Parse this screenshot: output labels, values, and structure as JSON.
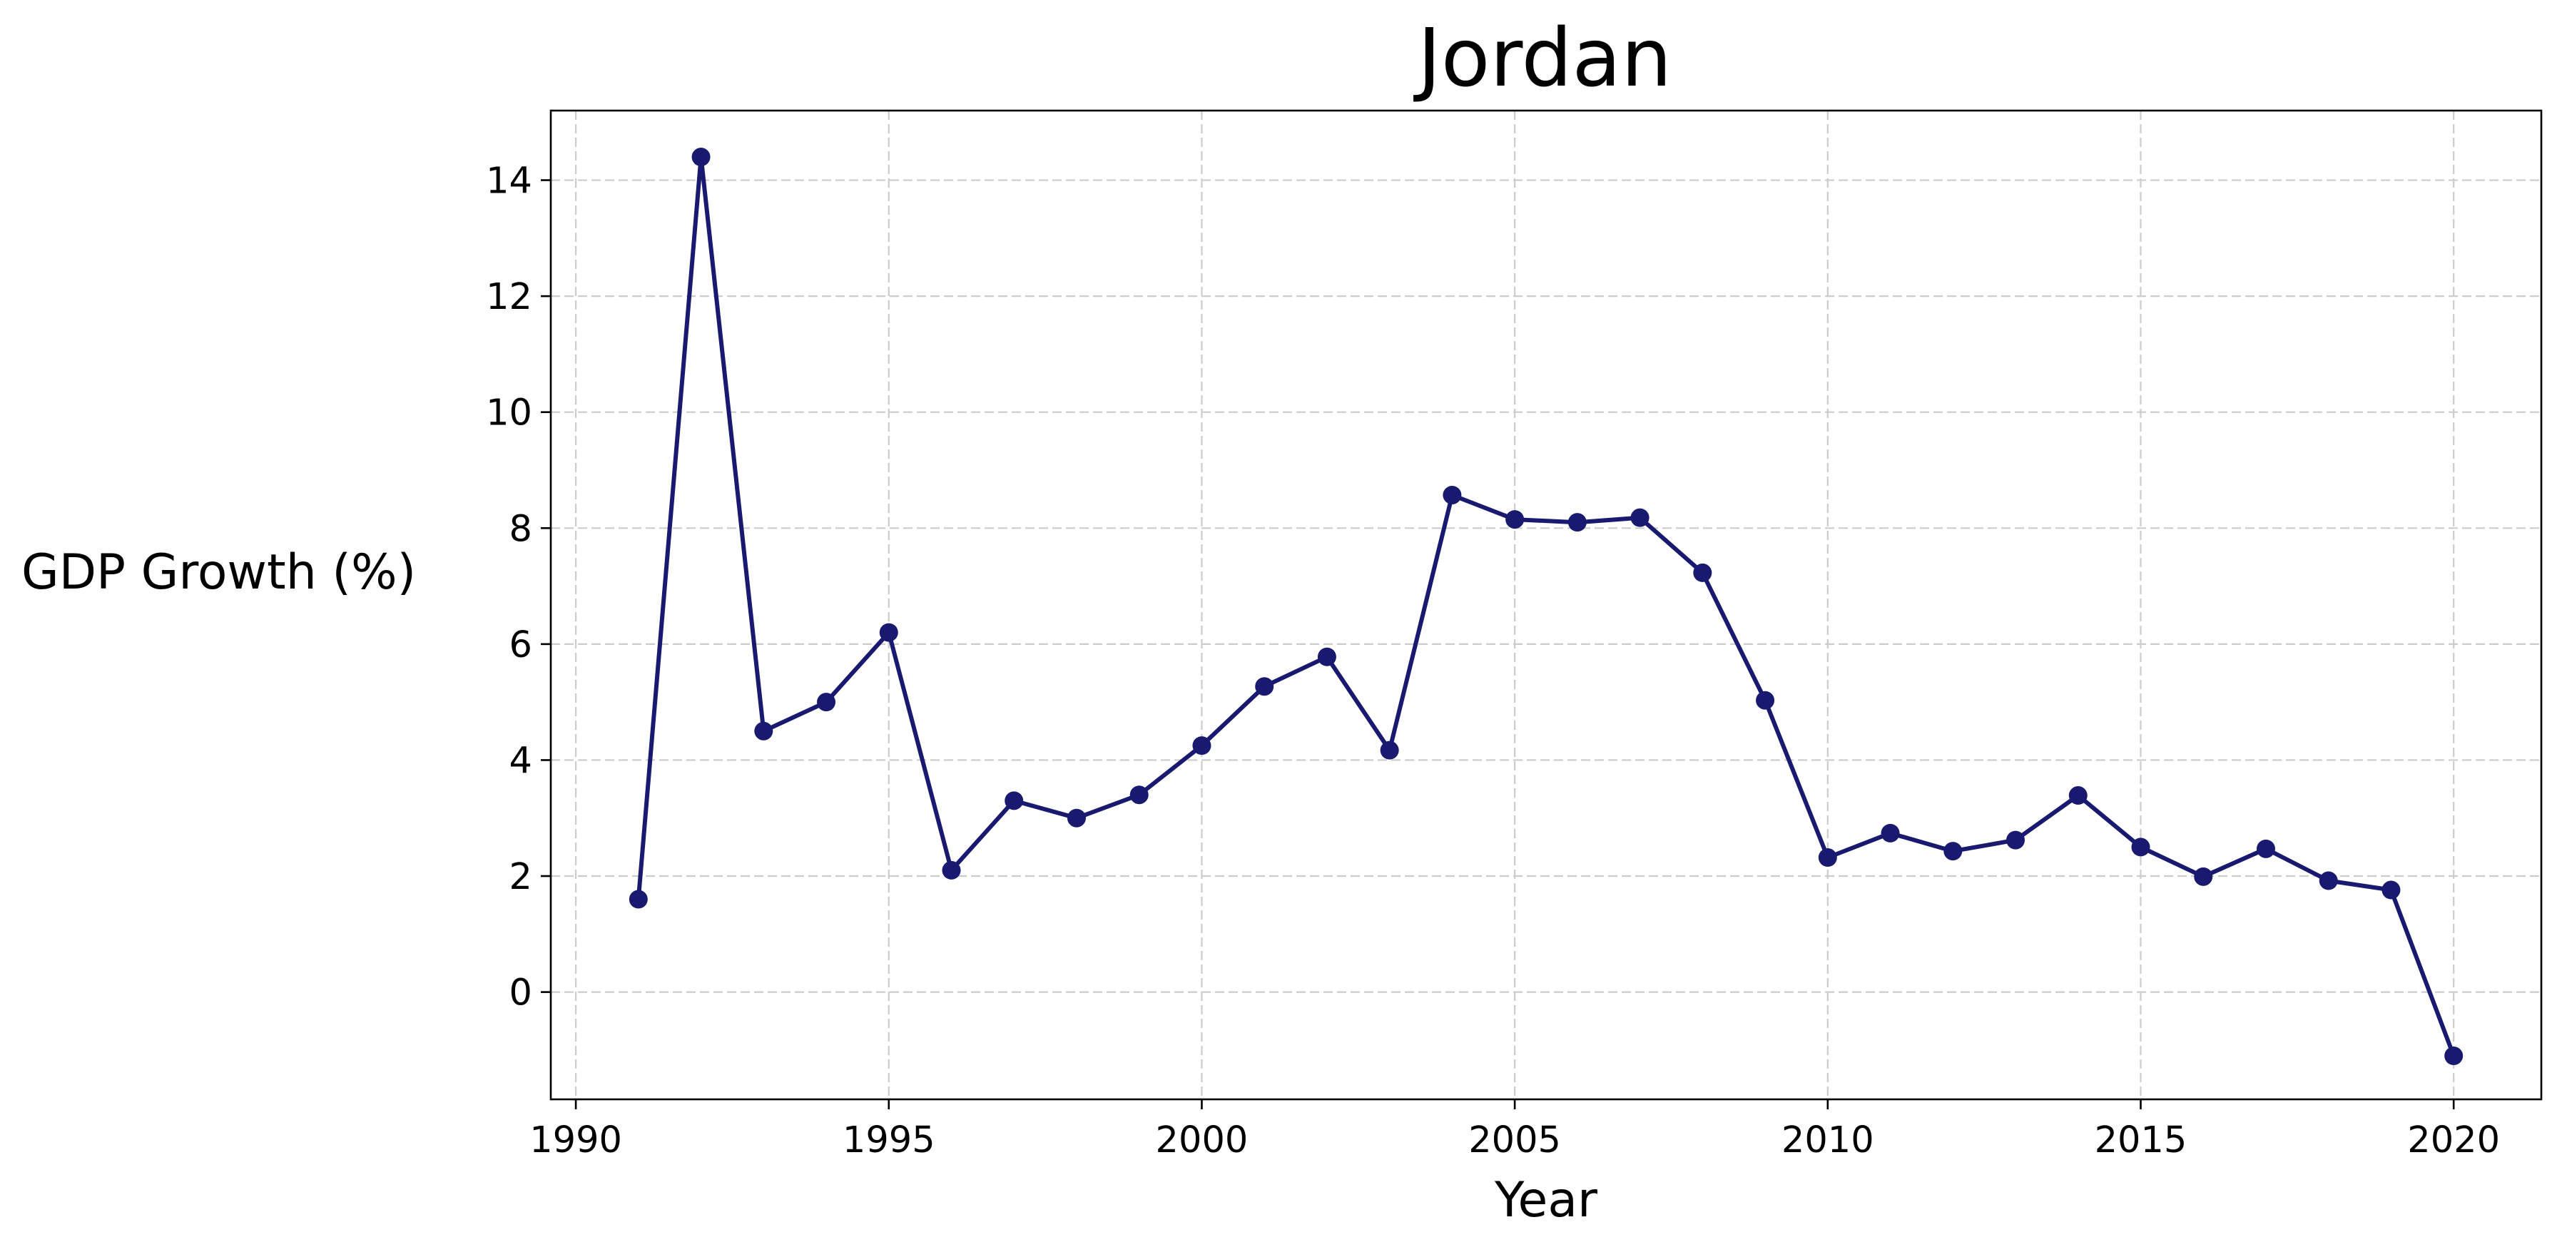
{
  "chart_data": {
    "type": "line",
    "title": "Jordan",
    "xlabel": "Year",
    "ylabel": "GDP Growth (%)",
    "xlim": [
      1989.6,
      2021.4
    ],
    "ylim": [
      -1.85,
      15.2
    ],
    "x_ticks": [
      1990,
      1995,
      2000,
      2005,
      2010,
      2015,
      2020
    ],
    "y_ticks": [
      0,
      2,
      4,
      6,
      8,
      10,
      12,
      14
    ],
    "grid": true,
    "legend": "none",
    "series": [
      {
        "color": "#191970",
        "marker": "circle",
        "x": [
          1991,
          1992,
          1993,
          1994,
          1995,
          1996,
          1997,
          1998,
          1999,
          2000,
          2001,
          2002,
          2003,
          2004,
          2005,
          2006,
          2007,
          2008,
          2009,
          2010,
          2011,
          2012,
          2013,
          2014,
          2015,
          2016,
          2017,
          2018,
          2019,
          2020
        ],
        "y": [
          1.6,
          14.4,
          4.5,
          5.0,
          6.2,
          2.1,
          3.3,
          3.0,
          3.4,
          4.25,
          5.27,
          5.78,
          4.17,
          8.57,
          8.15,
          8.1,
          8.18,
          7.23,
          5.03,
          2.32,
          2.74,
          2.43,
          2.62,
          3.39,
          2.5,
          1.99,
          2.47,
          1.92,
          1.76,
          -1.1
        ]
      }
    ]
  }
}
